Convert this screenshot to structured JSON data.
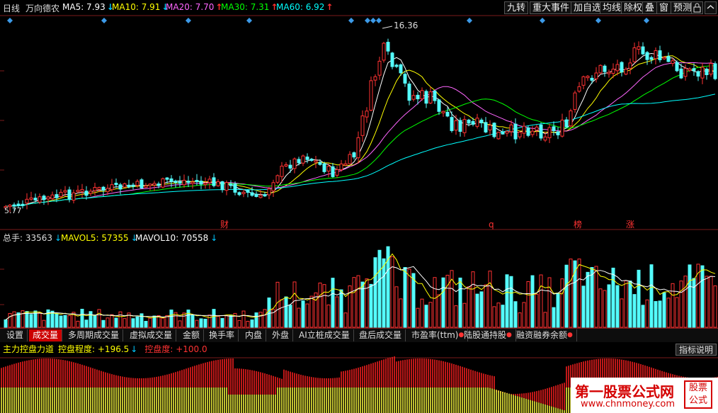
{
  "header": {
    "period": "日线",
    "stock_name": "万向德农",
    "ma": [
      {
        "label": "MA5: 7.93",
        "arrow": "↓",
        "color": "#ffffff",
        "arrow_color": "#00c8ff"
      },
      {
        "label": "MA10: 7.91",
        "arrow": "↓",
        "color": "#ffff00",
        "arrow_color": "#00c8ff"
      },
      {
        "label": "MA20: 7.70",
        "arrow": "↑",
        "color": "#ff66ff",
        "arrow_color": "#ff3030"
      },
      {
        "label": "MA30: 7.31",
        "arrow": "↑",
        "color": "#00ff00",
        "arrow_color": "#ff3030"
      },
      {
        "label": "MA60: 6.92",
        "arrow": "↑",
        "color": "#00ffff",
        "arrow_color": "#ff3030"
      }
    ],
    "buttons": [
      "九转",
      "重大事件",
      "加自选",
      "均线",
      "除权",
      "叠",
      "窗",
      "预测"
    ]
  },
  "price_chart": {
    "max_label": "16.36",
    "min_label": "5.77",
    "event_markers": [
      "财",
      "q",
      "榜",
      "涨"
    ]
  },
  "volume_panel": {
    "total": {
      "label": "总手: 33563",
      "arrow": "↓"
    },
    "mavol5": {
      "label": "MAVOL5: 57355",
      "arrow": "↓"
    },
    "mavol10": {
      "label": "MAVOL10: 70558",
      "arrow": "↓"
    }
  },
  "tabs": [
    {
      "label": "设置",
      "active": false,
      "dot": false
    },
    {
      "label": "成交量",
      "active": true,
      "dot": false
    },
    {
      "label": "多周期成交量",
      "active": false,
      "dot": false
    },
    {
      "label": "虚拟成交量",
      "active": false,
      "dot": false
    },
    {
      "label": "金额",
      "active": false,
      "dot": false
    },
    {
      "label": "换手率",
      "active": false,
      "dot": false
    },
    {
      "label": "内盘",
      "active": false,
      "dot": false
    },
    {
      "label": "外盘",
      "active": false,
      "dot": false
    },
    {
      "label": "AI立桩成交量",
      "active": false,
      "dot": false
    },
    {
      "label": "盘后成交量",
      "active": false,
      "dot": false
    },
    {
      "label": "市盈率(ttm)",
      "active": false,
      "dot": true
    },
    {
      "label": "陆股通持股",
      "active": false,
      "dot": true
    },
    {
      "label": "融资融券余额",
      "active": false,
      "dot": true
    }
  ],
  "indicator3": {
    "name": "主力控盘力道",
    "degree": {
      "label": "控盘程度: +196.5",
      "arrow": "↓"
    },
    "ctrl": {
      "label": "控盘度: +100.0"
    },
    "button": "指标说明"
  },
  "watermark": {
    "title": "第一股票公式网",
    "url": "www.chnmoney.com",
    "badge": [
      "股票",
      "公式"
    ]
  },
  "colors": {
    "up": "#ff3232",
    "down": "#54fcfc",
    "ma5": "#ffffff",
    "ma10": "#ffff00",
    "ma20": "#ff66ff",
    "ma30": "#00ff00",
    "ma60": "#00ffff",
    "grid": "#7a1a1a"
  }
}
